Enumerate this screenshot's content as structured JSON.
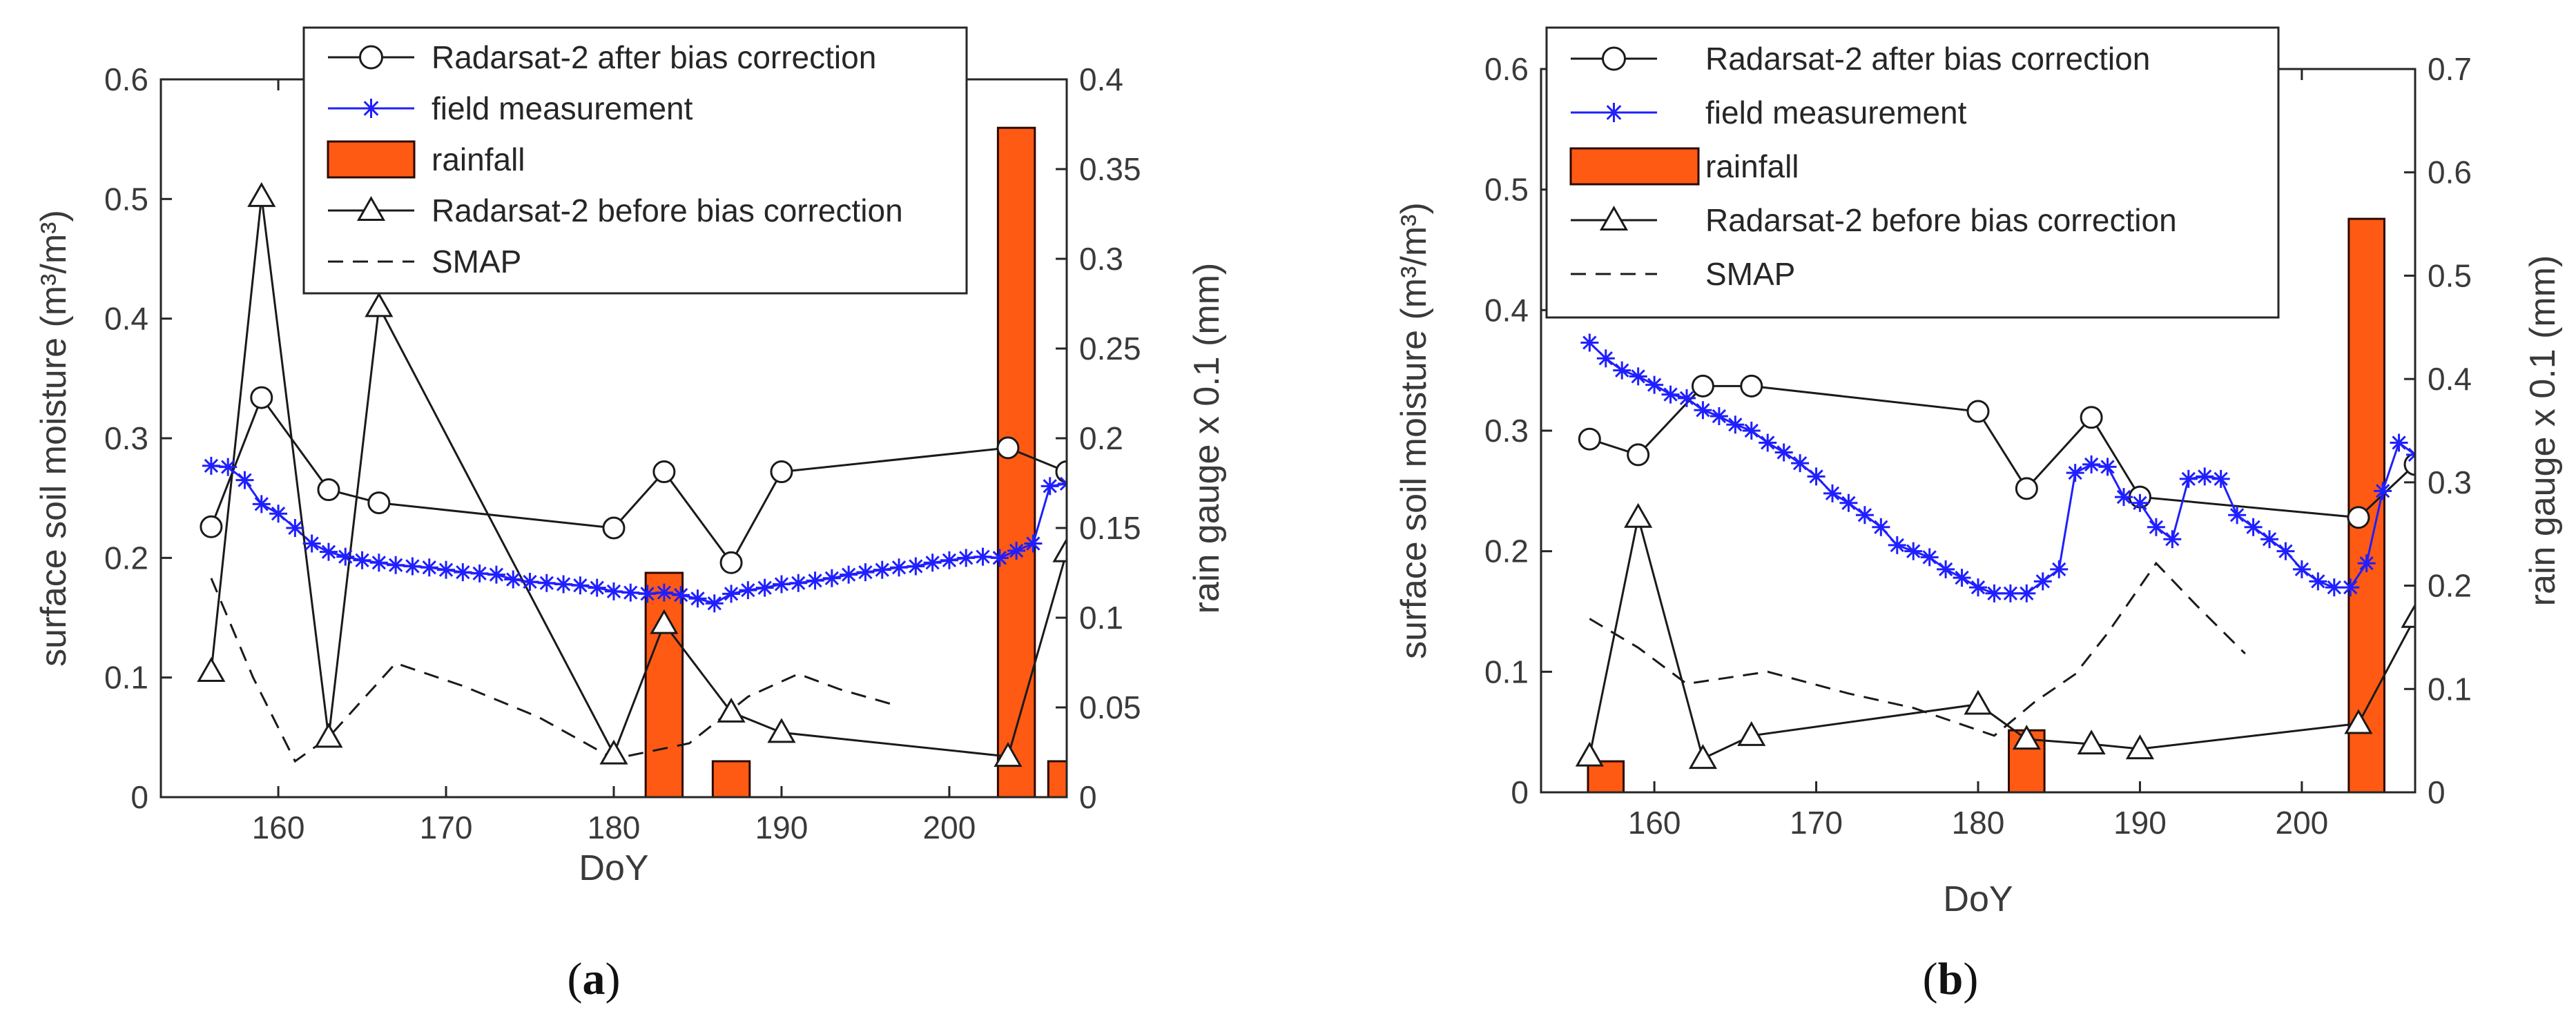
{
  "chart_data": [
    {
      "type": "line",
      "panel_label": "a",
      "xlabel": "DoY",
      "ylabel": "surface soil moisture (m³/m³)",
      "ylabel_right": "rain gauge x 0.1 (mm)",
      "xlim": [
        153,
        207
      ],
      "ylim": [
        0,
        0.6
      ],
      "ylim_right": [
        0,
        0.4
      ],
      "xticks": [
        160,
        170,
        180,
        190,
        200
      ],
      "xtick_labels": [
        "160",
        "170",
        "180",
        "190",
        "200"
      ],
      "yticks": [
        0,
        0.1,
        0.2,
        0.3,
        0.4,
        0.5,
        0.6
      ],
      "ytick_labels": [
        "0",
        "0.1",
        "0.2",
        "0.3",
        "0.4",
        "0.5",
        "0.6"
      ],
      "yticks_right": [
        0,
        0.05,
        0.1,
        0.15,
        0.2,
        0.25,
        0.3,
        0.35,
        0.4
      ],
      "ytick_labels_right": [
        "0",
        "0.05",
        "0.1",
        "0.15",
        "0.2",
        "0.25",
        "0.3",
        "0.35",
        "0.4"
      ],
      "legend": [
        "Radarsat-2 after bias correction",
        "field measurement",
        "rainfall",
        "Radarsat-2 before bias correction",
        "SMAP"
      ],
      "legend_position": "top",
      "colors": {
        "field": "#1f1fff",
        "rain": "#ff5a14",
        "rain_edge": "#2b0a00",
        "black": "#1a1a1a"
      },
      "series": [
        {
          "name": "Radarsat-2 after bias correction",
          "style": "circle",
          "x": [
            156,
            159,
            163,
            166,
            180,
            183,
            187,
            190,
            203.5,
            207
          ],
          "y": [
            0.226,
            0.334,
            0.257,
            0.246,
            0.225,
            0.272,
            0.196,
            0.272,
            0.292,
            0.272
          ]
        },
        {
          "name": "field measurement",
          "style": "star",
          "x": [
            156,
            157,
            158,
            159,
            160,
            161,
            162,
            163,
            164,
            165,
            166,
            167,
            168,
            169,
            170,
            171,
            172,
            173,
            174,
            175,
            176,
            177,
            178,
            179,
            180,
            181,
            182,
            183,
            184,
            185,
            186,
            187,
            188,
            189,
            190,
            191,
            192,
            193,
            194,
            195,
            196,
            197,
            198,
            199,
            200,
            201,
            202,
            203,
            204,
            205,
            206,
            207
          ],
          "y": [
            0.277,
            0.276,
            0.265,
            0.245,
            0.237,
            0.225,
            0.212,
            0.205,
            0.201,
            0.198,
            0.196,
            0.194,
            0.193,
            0.192,
            0.19,
            0.188,
            0.187,
            0.186,
            0.182,
            0.18,
            0.179,
            0.178,
            0.177,
            0.175,
            0.172,
            0.171,
            0.17,
            0.171,
            0.169,
            0.166,
            0.162,
            0.17,
            0.173,
            0.175,
            0.178,
            0.179,
            0.181,
            0.183,
            0.186,
            0.188,
            0.19,
            0.192,
            0.193,
            0.196,
            0.198,
            0.2,
            0.201,
            0.2,
            0.206,
            0.212,
            0.26,
            0.262
          ]
        },
        {
          "name": "Radarsat-2 before bias correction",
          "style": "triangle",
          "x": [
            156,
            159,
            163,
            166,
            180,
            183,
            187,
            190,
            203.5,
            207
          ],
          "y": [
            0.105,
            0.502,
            0.05,
            0.41,
            0.036,
            0.145,
            0.071,
            0.054,
            0.034,
            0.205
          ]
        },
        {
          "name": "SMAP",
          "style": "dash",
          "x": [
            156,
            158.5,
            161,
            163,
            167,
            171,
            175.5,
            180,
            184.5,
            188,
            191,
            193.5,
            196.5
          ],
          "y": [
            0.183,
            0.1,
            0.03,
            0.05,
            0.112,
            0.093,
            0.067,
            0.032,
            0.045,
            0.084,
            0.103,
            0.09,
            0.078
          ]
        },
        {
          "name": "rainfall",
          "style": "bar",
          "axis": "right",
          "x": [
            183,
            187,
            204,
            207
          ],
          "values": [
            0.125,
            0.02,
            0.373,
            0.02
          ],
          "bar_width": 2.2
        }
      ]
    },
    {
      "type": "line",
      "panel_label": "b",
      "xlabel": "DoY",
      "ylabel": "surface soil moisture (m³/m³)",
      "ylabel_right": "rain gauge x 0.1 (mm)",
      "xlim": [
        153,
        207
      ],
      "ylim": [
        0,
        0.6
      ],
      "ylim_right": [
        0,
        0.7
      ],
      "xticks": [
        160,
        170,
        180,
        190,
        200
      ],
      "xtick_labels": [
        "160",
        "170",
        "180",
        "190",
        "200"
      ],
      "yticks": [
        0,
        0.1,
        0.2,
        0.3,
        0.4,
        0.5,
        0.6
      ],
      "ytick_labels": [
        "0",
        "0.1",
        "0.2",
        "0.3",
        "0.4",
        "0.5",
        "0.6"
      ],
      "yticks_right": [
        0,
        0.1,
        0.2,
        0.3,
        0.4,
        0.5,
        0.6,
        0.7
      ],
      "ytick_labels_right": [
        "0",
        "0.1",
        "0.2",
        "0.3",
        "0.4",
        "0.5",
        "0.6",
        "0.7"
      ],
      "legend": [
        "Radarsat-2 after bias correction",
        "field measurement",
        "rainfall",
        "Radarsat-2 before bias correction",
        "SMAP"
      ],
      "legend_position": "top-left",
      "colors": {
        "field": "#1f1fff",
        "rain": "#ff5a14",
        "rain_edge": "#2b0a00",
        "black": "#1a1a1a"
      },
      "series": [
        {
          "name": "Radarsat-2 after bias correction",
          "style": "circle",
          "x": [
            156,
            159,
            163,
            166,
            180,
            183,
            187,
            190,
            203.5,
            207
          ],
          "y": [
            0.293,
            0.28,
            0.337,
            0.337,
            0.316,
            0.252,
            0.311,
            0.245,
            0.228,
            0.272
          ]
        },
        {
          "name": "field measurement",
          "style": "star",
          "x": [
            156,
            157,
            158,
            159,
            160,
            161,
            162,
            163,
            164,
            165,
            166,
            167,
            168,
            169,
            170,
            171,
            172,
            173,
            174,
            175,
            176,
            177,
            178,
            179,
            180,
            181,
            182,
            183,
            184,
            185,
            186,
            187,
            188,
            189,
            190,
            191,
            192,
            193,
            194,
            195,
            196,
            197,
            198,
            199,
            200,
            201,
            202,
            203,
            204,
            205,
            206,
            207
          ],
          "y": [
            0.373,
            0.36,
            0.35,
            0.345,
            0.338,
            0.33,
            0.327,
            0.317,
            0.312,
            0.305,
            0.3,
            0.29,
            0.282,
            0.273,
            0.262,
            0.248,
            0.24,
            0.23,
            0.22,
            0.205,
            0.2,
            0.195,
            0.185,
            0.178,
            0.17,
            0.165,
            0.165,
            0.165,
            0.175,
            0.185,
            0.265,
            0.272,
            0.27,
            0.245,
            0.24,
            0.22,
            0.21,
            0.26,
            0.262,
            0.26,
            0.23,
            0.22,
            0.21,
            0.2,
            0.185,
            0.175,
            0.17,
            0.17,
            0.19,
            0.25,
            0.29,
            0.28
          ]
        },
        {
          "name": "Radarsat-2 before bias correction",
          "style": "triangle",
          "x": [
            156,
            159,
            163,
            166,
            180,
            183,
            187,
            190,
            203.5,
            207
          ],
          "y": [
            0.03,
            0.228,
            0.028,
            0.047,
            0.073,
            0.044,
            0.04,
            0.036,
            0.057,
            0.145
          ]
        },
        {
          "name": "SMAP",
          "style": "dash",
          "x": [
            156,
            159,
            162,
            167,
            172,
            176,
            181,
            183.5,
            186,
            188,
            191,
            193.5,
            196.5
          ],
          "y": [
            0.144,
            0.12,
            0.09,
            0.1,
            0.082,
            0.07,
            0.047,
            0.075,
            0.098,
            0.132,
            0.19,
            0.155,
            0.115
          ]
        },
        {
          "name": "rainfall",
          "style": "bar",
          "axis": "right",
          "x": [
            157,
            183,
            204
          ],
          "values": [
            0.03,
            0.06,
            0.555
          ],
          "bar_width": 2.2
        }
      ]
    }
  ]
}
